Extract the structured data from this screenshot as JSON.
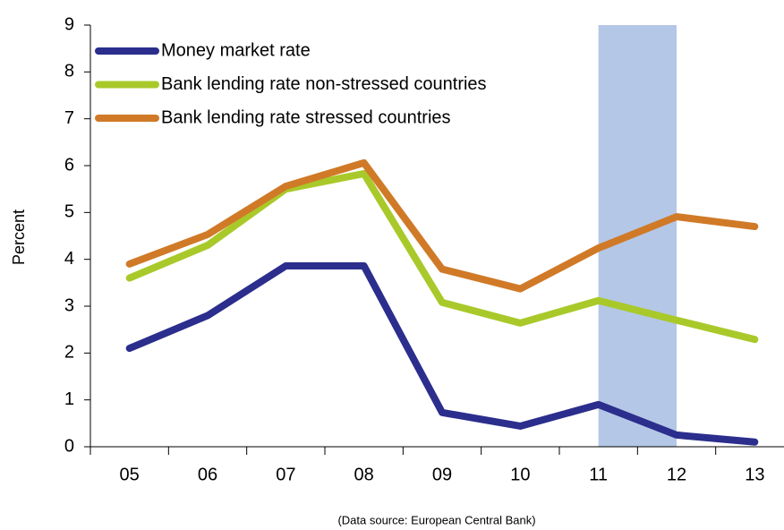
{
  "chart_data": {
    "type": "line",
    "y_label": "Percent",
    "source": "(Data source: European Central Bank)",
    "categories": [
      "05",
      "06",
      "07",
      "08",
      "09",
      "10",
      "11",
      "12",
      "13"
    ],
    "series": [
      {
        "name": "Money market rate",
        "color": "#2b2e8c",
        "values": [
          2.1,
          2.8,
          3.86,
          3.86,
          0.73,
          0.44,
          0.9,
          0.25,
          0.1
        ]
      },
      {
        "name": "Bank lending rate non-stressed countries",
        "color": "#a9c92a",
        "values": [
          3.6,
          4.3,
          5.5,
          5.83,
          3.08,
          2.64,
          3.12,
          2.7,
          2.29
        ]
      },
      {
        "name": "Bank lending rate stressed countries",
        "color": "#d07a27",
        "values": [
          3.9,
          4.53,
          5.56,
          6.06,
          3.79,
          3.37,
          4.24,
          4.91,
          4.7
        ]
      }
    ],
    "shaded_span": {
      "from": "11",
      "to": "12",
      "color": "#b4c7e7"
    },
    "ylim": [
      0,
      9
    ],
    "yticks": [
      0,
      1,
      2,
      3,
      4,
      5,
      6,
      7,
      8,
      9
    ],
    "legend": "top-left"
  }
}
